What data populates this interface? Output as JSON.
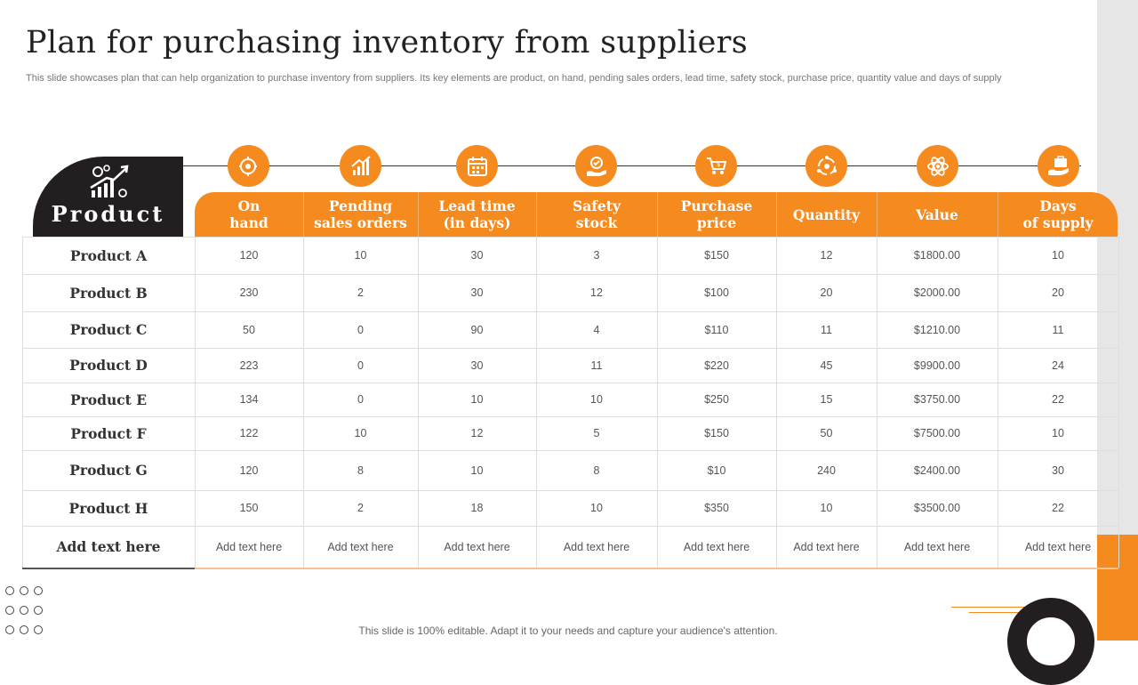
{
  "title": "Plan for purchasing inventory from suppliers",
  "subtitle": "This slide showcases plan that can help organization to purchase inventory from suppliers. Its key elements are product, on hand, pending sales orders, lead time, safety stock, purchase price, quantity value and days of supply",
  "product_header": "Product",
  "columns": [
    {
      "label": "On\nhand",
      "icon": "gear-head-icon"
    },
    {
      "label": "Pending\nsales orders",
      "icon": "growth-chart-icon"
    },
    {
      "label": "Lead time\n(in days)",
      "icon": "calendar-icon"
    },
    {
      "label": "Safety\nstock",
      "icon": "hand-heart-icon"
    },
    {
      "label": "Purchase\nprice",
      "icon": "shopping-cart-icon"
    },
    {
      "label": "Quantity",
      "icon": "cycle-icon"
    },
    {
      "label": "Value",
      "icon": "atom-icon"
    },
    {
      "label": "Days\nof supply",
      "icon": "hand-briefcase-icon"
    }
  ],
  "rows": [
    {
      "product": "Product A",
      "values": [
        "120",
        "10",
        "30",
        "3",
        "$150",
        "12",
        "$1800.00",
        "10"
      ]
    },
    {
      "product": "Product B",
      "values": [
        "230",
        "2",
        "30",
        "12",
        "$100",
        "20",
        "$2000.00",
        "20"
      ]
    },
    {
      "product": "Product C",
      "values": [
        "50",
        "0",
        "90",
        "4",
        "$110",
        "11",
        "$1210.00",
        "11"
      ]
    },
    {
      "product": "Product D",
      "values": [
        "223",
        "0",
        "30",
        "11",
        "$220",
        "45",
        "$9900.00",
        "24"
      ]
    },
    {
      "product": "Product E",
      "values": [
        "134",
        "0",
        "10",
        "10",
        "$250",
        "15",
        "$3750.00",
        "22"
      ]
    },
    {
      "product": "Product F",
      "values": [
        "122",
        "10",
        "12",
        "5",
        "$150",
        "50",
        "$7500.00",
        "10"
      ]
    },
    {
      "product": "Product G",
      "values": [
        "120",
        "8",
        "10",
        "8",
        "$10",
        "240",
        "$2400.00",
        "30"
      ]
    },
    {
      "product": "Product H",
      "values": [
        "150",
        "2",
        "18",
        "10",
        "$350",
        "10",
        "$3500.00",
        "22"
      ]
    },
    {
      "product": "Add text here",
      "values": [
        "Add text here",
        "Add text here",
        "Add text here",
        "Add text here",
        "Add text here",
        "Add text here",
        "Add text here",
        "Add text here"
      ]
    }
  ],
  "footer": "This slide is 100% editable. Adapt it to your needs and capture your audience's attention.",
  "colors": {
    "accent": "#f58a1f",
    "dark": "#231f20"
  }
}
